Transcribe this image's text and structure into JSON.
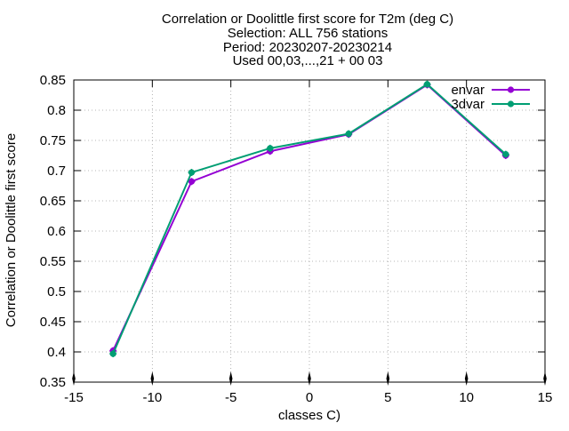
{
  "chart_data": {
    "type": "line",
    "title_lines": [
      "Correlation or Doolittle first score  for T2m (deg C)",
      "Selection: ALL    756 stations",
      "Period: 20230207-20230214",
      "Used 00,03,...,21 + 00 03"
    ],
    "xlabel": "classes C)",
    "ylabel": "Correlation or Doolittle first score",
    "xlim": [
      -15,
      15
    ],
    "ylim": [
      0.35,
      0.85
    ],
    "xticks": [
      -15,
      -10,
      -5,
      0,
      5,
      10,
      15
    ],
    "yticks": [
      0.35,
      0.4,
      0.45,
      0.5,
      0.55,
      0.6,
      0.65,
      0.7,
      0.75,
      0.8,
      0.85
    ],
    "grid": true,
    "legend_position": "top-right",
    "series": [
      {
        "name": "envar",
        "color": "#9400d3",
        "x": [
          -12.5,
          -7.5,
          -2.5,
          2.5,
          7.5,
          12.5
        ],
        "y": [
          0.402,
          0.682,
          0.732,
          0.76,
          0.842,
          0.725
        ]
      },
      {
        "name": "3dvar",
        "color": "#009e73",
        "x": [
          -12.5,
          -7.5,
          -2.5,
          2.5,
          7.5,
          12.5
        ],
        "y": [
          0.397,
          0.697,
          0.737,
          0.761,
          0.843,
          0.727
        ]
      }
    ]
  }
}
